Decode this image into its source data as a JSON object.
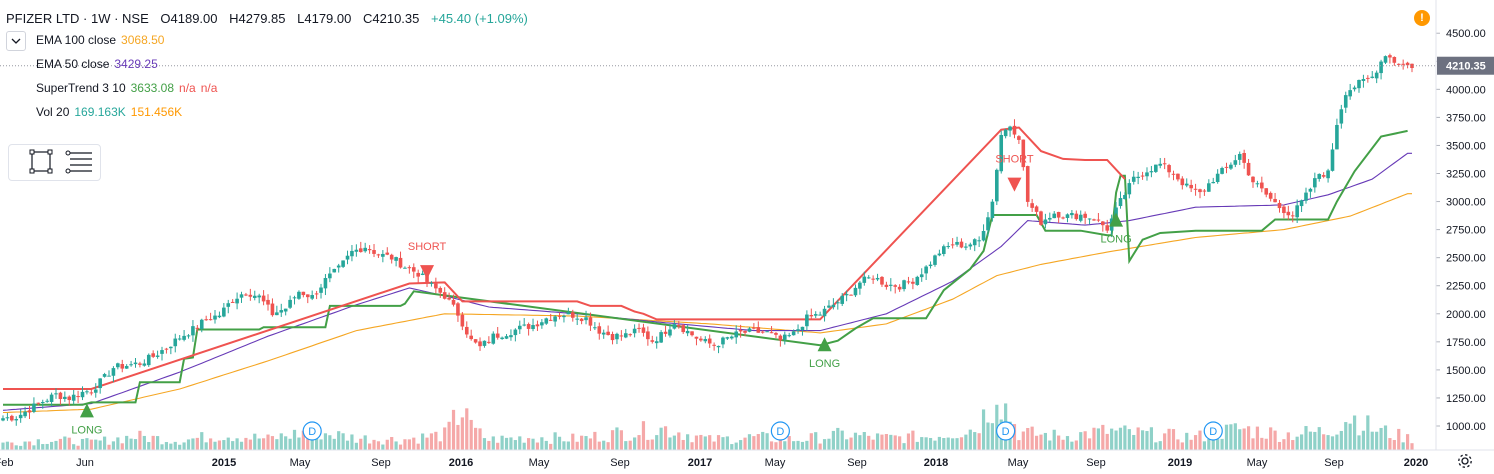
{
  "header": {
    "symbol": "PFIZER LTD · 1W · NSE",
    "open": "O4189.00",
    "high": "H4279.85",
    "low": "L4179.00",
    "close": "C4210.35",
    "change": "+45.40 (+1.09%)"
  },
  "indicators": [
    {
      "name": "EMA 100 close",
      "values": [
        "3068.50"
      ],
      "colors": [
        "#f5a623"
      ]
    },
    {
      "name": "EMA 50 close",
      "values": [
        "3429.25"
      ],
      "colors": [
        "#673ab7"
      ]
    },
    {
      "name": "SuperTrend 3 10",
      "values": [
        "3633.08",
        "n/a",
        "n/a"
      ],
      "colors": [
        "#43a047",
        "#ef5350",
        "#ef5350"
      ]
    },
    {
      "name": "Vol 20",
      "values": [
        "169.163K",
        "151.456K"
      ],
      "colors": [
        "#26a69a",
        "#ff9800"
      ]
    }
  ],
  "alert_icon": "!",
  "colors": {
    "up": "#26a69a",
    "down": "#ef5350",
    "supertrend_up": "#43a047",
    "supertrend_down": "#ef5350",
    "ema50": "#673ab7",
    "ema100": "#f5a623",
    "vol_up": "#8fd1c8",
    "vol_down": "#f5a8a8"
  },
  "chart_data": {
    "type": "candlestick",
    "title": "PFIZER LTD · 1W · NSE",
    "ylim": [
      950,
      4600
    ],
    "y_ticks": [
      "1000.00",
      "1250.00",
      "1500.00",
      "1750.00",
      "2000.00",
      "2250.00",
      "2500.00",
      "2750.00",
      "3000.00",
      "3250.00",
      "3500.00",
      "3750.00",
      "4000.00",
      "4250.00",
      "4500.00"
    ],
    "last_price_label": "4210.35",
    "last_price": 4210.35,
    "x_ticks": [
      "Feb",
      "Jun",
      "2015",
      "May",
      "Sep",
      "2016",
      "May",
      "Sep",
      "2017",
      "May",
      "Sep",
      "2018",
      "May",
      "Sep",
      "2019",
      "May",
      "Sep",
      "2020"
    ],
    "price_path": [
      [
        0,
        1070
      ],
      [
        3,
        1080
      ],
      [
        6,
        1150
      ],
      [
        9,
        1220
      ],
      [
        12,
        1280
      ],
      [
        15,
        1250
      ],
      [
        18,
        1300
      ],
      [
        20,
        1320
      ],
      [
        23,
        1430
      ],
      [
        25,
        1520
      ],
      [
        28,
        1540
      ],
      [
        31,
        1560
      ],
      [
        34,
        1620
      ],
      [
        37,
        1700
      ],
      [
        40,
        1790
      ],
      [
        43,
        1860
      ],
      [
        46,
        1950
      ],
      [
        49,
        1990
      ],
      [
        52,
        2130
      ],
      [
        55,
        2200
      ],
      [
        58,
        2150
      ],
      [
        61,
        2000
      ],
      [
        64,
        2050
      ],
      [
        67,
        2200
      ],
      [
        70,
        2150
      ],
      [
        73,
        2300
      ],
      [
        76,
        2400
      ],
      [
        79,
        2550
      ],
      [
        82,
        2600
      ],
      [
        85,
        2530
      ],
      [
        88,
        2500
      ],
      [
        91,
        2420
      ],
      [
        94,
        2360
      ],
      [
        97,
        2250
      ],
      [
        100,
        2160
      ],
      [
        103,
        2000
      ],
      [
        106,
        1760
      ],
      [
        108,
        1700
      ],
      [
        111,
        1800
      ],
      [
        114,
        1830
      ],
      [
        117,
        1870
      ],
      [
        120,
        1900
      ],
      [
        123,
        1960
      ],
      [
        126,
        2000
      ],
      [
        129,
        1990
      ],
      [
        132,
        1960
      ],
      [
        135,
        1850
      ],
      [
        138,
        1800
      ],
      [
        141,
        1810
      ],
      [
        144,
        1850
      ],
      [
        147,
        1760
      ],
      [
        149,
        1810
      ],
      [
        152,
        1930
      ],
      [
        155,
        1840
      ],
      [
        158,
        1760
      ],
      [
        161,
        1720
      ],
      [
        164,
        1780
      ],
      [
        167,
        1830
      ],
      [
        170,
        1840
      ],
      [
        173,
        1830
      ],
      [
        176,
        1760
      ],
      [
        179,
        1820
      ],
      [
        182,
        1960
      ],
      [
        185,
        2000
      ],
      [
        188,
        2080
      ],
      [
        191,
        2160
      ],
      [
        194,
        2280
      ],
      [
        197,
        2330
      ],
      [
        200,
        2260
      ],
      [
        203,
        2250
      ],
      [
        206,
        2300
      ],
      [
        209,
        2410
      ],
      [
        212,
        2550
      ],
      [
        215,
        2620
      ],
      [
        218,
        2610
      ],
      [
        221,
        2650
      ],
      [
        224,
        3000
      ],
      [
        226,
        3600
      ],
      [
        228,
        3680
      ],
      [
        230,
        3580
      ],
      [
        232,
        3000
      ],
      [
        235,
        2820
      ],
      [
        238,
        2900
      ],
      [
        241,
        2870
      ],
      [
        244,
        2880
      ],
      [
        247,
        2850
      ],
      [
        250,
        2760
      ],
      [
        253,
        3000
      ],
      [
        256,
        3200
      ],
      [
        259,
        3280
      ],
      [
        262,
        3330
      ],
      [
        265,
        3250
      ],
      [
        268,
        3130
      ],
      [
        271,
        3070
      ],
      [
        274,
        3200
      ],
      [
        277,
        3300
      ],
      [
        280,
        3420
      ],
      [
        283,
        3180
      ],
      [
        286,
        3060
      ],
      [
        289,
        2950
      ],
      [
        292,
        2880
      ],
      [
        295,
        3050
      ],
      [
        298,
        3250
      ],
      [
        300,
        3250
      ],
      [
        302,
        3700
      ],
      [
        304,
        3980
      ],
      [
        307,
        4050
      ],
      [
        310,
        4110
      ],
      [
        313,
        4320
      ],
      [
        315,
        4250
      ],
      [
        318,
        4210
      ]
    ],
    "supertrend_up_path": [
      [
        0,
        1190
      ],
      [
        18,
        1190
      ],
      [
        20,
        1210
      ],
      [
        30,
        1210
      ],
      [
        31,
        1390
      ],
      [
        40,
        1390
      ],
      [
        41,
        1600
      ],
      [
        43,
        1610
      ],
      [
        44,
        1860
      ],
      [
        58,
        1860
      ],
      [
        59,
        1880
      ],
      [
        73,
        1880
      ],
      [
        74,
        2070
      ],
      [
        90,
        2070
      ],
      [
        91,
        2090
      ],
      [
        93,
        2200
      ],
      [
        185,
        1720
      ],
      [
        189,
        1760
      ],
      [
        193,
        1870
      ],
      [
        197,
        1960
      ],
      [
        209,
        1960
      ],
      [
        213,
        2210
      ],
      [
        219,
        2400
      ],
      [
        222,
        2560
      ],
      [
        224,
        2880
      ],
      [
        234,
        2880
      ],
      [
        236,
        2740
      ],
      [
        244,
        2740
      ],
      [
        250,
        2700
      ],
      [
        251,
        2700
      ],
      [
        252,
        3080
      ],
      [
        253,
        3230
      ],
      [
        254,
        3230
      ],
      [
        255,
        2470
      ],
      [
        258,
        2660
      ],
      [
        262,
        2720
      ],
      [
        270,
        2740
      ],
      [
        285,
        2740
      ],
      [
        288,
        2840
      ],
      [
        300,
        2840
      ],
      [
        302,
        3000
      ],
      [
        306,
        3270
      ],
      [
        312,
        3580
      ],
      [
        318,
        3630
      ]
    ],
    "supertrend_down_path": [
      [
        0,
        1330
      ],
      [
        18,
        1330
      ],
      [
        20,
        1330
      ],
      [
        92,
        2270
      ],
      [
        100,
        2280
      ],
      [
        104,
        2110
      ],
      [
        130,
        2110
      ],
      [
        133,
        2070
      ],
      [
        140,
        2070
      ],
      [
        143,
        2020
      ],
      [
        145,
        2000
      ],
      [
        148,
        1950
      ],
      [
        185,
        1950
      ],
      [
        226,
        3640
      ],
      [
        230,
        3660
      ],
      [
        235,
        3450
      ],
      [
        240,
        3380
      ],
      [
        245,
        3370
      ],
      [
        250,
        3370
      ],
      [
        254,
        3200
      ]
    ],
    "ema50_path": [
      [
        0,
        1140
      ],
      [
        20,
        1200
      ],
      [
        40,
        1480
      ],
      [
        60,
        1800
      ],
      [
        80,
        2080
      ],
      [
        92,
        2230
      ],
      [
        100,
        2160
      ],
      [
        110,
        2060
      ],
      [
        130,
        2000
      ],
      [
        150,
        1920
      ],
      [
        170,
        1850
      ],
      [
        185,
        1850
      ],
      [
        200,
        2000
      ],
      [
        215,
        2290
      ],
      [
        226,
        2600
      ],
      [
        232,
        2830
      ],
      [
        245,
        2790
      ],
      [
        255,
        2830
      ],
      [
        270,
        2950
      ],
      [
        290,
        2970
      ],
      [
        300,
        3060
      ],
      [
        310,
        3200
      ],
      [
        318,
        3430
      ]
    ],
    "ema100_path": [
      [
        0,
        1120
      ],
      [
        20,
        1150
      ],
      [
        40,
        1330
      ],
      [
        60,
        1580
      ],
      [
        80,
        1850
      ],
      [
        100,
        2000
      ],
      [
        130,
        1980
      ],
      [
        160,
        1910
      ],
      [
        185,
        1830
      ],
      [
        200,
        1910
      ],
      [
        215,
        2130
      ],
      [
        225,
        2340
      ],
      [
        235,
        2440
      ],
      [
        250,
        2550
      ],
      [
        270,
        2680
      ],
      [
        290,
        2750
      ],
      [
        305,
        2870
      ],
      [
        318,
        3070
      ]
    ],
    "volume_path": [
      [
        0,
        0.08
      ],
      [
        10,
        0.12
      ],
      [
        20,
        0.09
      ],
      [
        30,
        0.16
      ],
      [
        40,
        0.11
      ],
      [
        50,
        0.18
      ],
      [
        60,
        0.13
      ],
      [
        70,
        0.22
      ],
      [
        80,
        0.14
      ],
      [
        90,
        0.12
      ],
      [
        100,
        0.18
      ],
      [
        105,
        0.55
      ],
      [
        106,
        0.25
      ],
      [
        110,
        0.12
      ],
      [
        120,
        0.15
      ],
      [
        130,
        0.13
      ],
      [
        140,
        0.2
      ],
      [
        150,
        0.25
      ],
      [
        160,
        0.12
      ],
      [
        170,
        0.15
      ],
      [
        180,
        0.12
      ],
      [
        190,
        0.18
      ],
      [
        200,
        0.14
      ],
      [
        210,
        0.16
      ],
      [
        220,
        0.25
      ],
      [
        224,
        0.55
      ],
      [
        225,
        0.8
      ],
      [
        226,
        0.6
      ],
      [
        230,
        0.2
      ],
      [
        240,
        0.16
      ],
      [
        250,
        0.22
      ],
      [
        260,
        0.18
      ],
      [
        270,
        0.15
      ],
      [
        280,
        0.25
      ],
      [
        290,
        0.18
      ],
      [
        300,
        0.22
      ],
      [
        305,
        0.4
      ],
      [
        310,
        0.25
      ],
      [
        318,
        0.14
      ]
    ],
    "signals": [
      {
        "type": "LONG",
        "label": "LONG",
        "x": 19,
        "price": 1130
      },
      {
        "type": "SHORT",
        "label": "SHORT",
        "x": 96,
        "price": 2380
      },
      {
        "type": "LONG",
        "label": "LONG",
        "x": 186,
        "price": 1720
      },
      {
        "type": "SHORT",
        "label": "SHORT",
        "x": 229,
        "price": 3160
      },
      {
        "type": "LONG",
        "label": "LONG",
        "x": 252,
        "price": 2830
      }
    ],
    "dividends": [
      {
        "label": "D",
        "x": 70
      },
      {
        "label": "D",
        "x": 176
      },
      {
        "label": "D",
        "x": 227
      },
      {
        "label": "D",
        "x": 274
      }
    ]
  }
}
